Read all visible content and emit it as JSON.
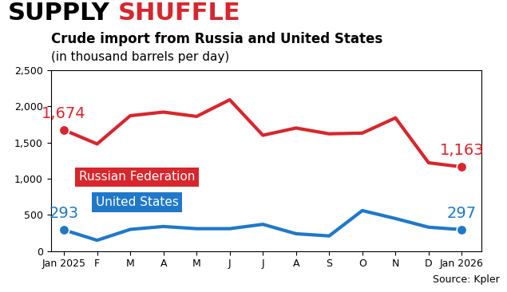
{
  "chart_data": {
    "type": "line",
    "title": "SUPPLY SHUFFLE",
    "subtitle": "Crude import from Russia and United States",
    "ylabel": "(in thousand barrels per day)",
    "source": "Source: Kpler",
    "categories": [
      "Jan 2025",
      "F",
      "M",
      "A",
      "M",
      "J",
      "J",
      "A",
      "S",
      "O",
      "N",
      "D",
      "Jan 2026"
    ],
    "series": [
      {
        "name": "Russian Federation",
        "color": "#d7262d",
        "marker": "circle",
        "values": [
          1674,
          1480,
          1870,
          1920,
          1860,
          2090,
          1600,
          1700,
          1620,
          1630,
          1840,
          1220,
          1163
        ],
        "value_labels": [
          "1,674",
          null,
          null,
          null,
          null,
          null,
          null,
          null,
          null,
          null,
          null,
          null,
          "1,163"
        ]
      },
      {
        "name": "United States",
        "color": "#1f78c8",
        "marker": "circle",
        "values": [
          293,
          150,
          300,
          340,
          310,
          310,
          370,
          240,
          210,
          560,
          450,
          330,
          297
        ],
        "value_labels": [
          "293",
          null,
          null,
          null,
          null,
          null,
          null,
          null,
          null,
          null,
          null,
          null,
          "297"
        ]
      }
    ],
    "ylim": [
      0,
      2500
    ],
    "yticks": [
      0,
      {
        "value": 500,
        "label": "500"
      },
      {
        "value": 1000,
        "label": "1,000"
      },
      {
        "value": 1500,
        "label": "1,500"
      },
      {
        "value": 2000,
        "label": "2,000"
      },
      {
        "value": 2500,
        "label": "2,500"
      }
    ],
    "grid": false,
    "data_labels": true
  }
}
